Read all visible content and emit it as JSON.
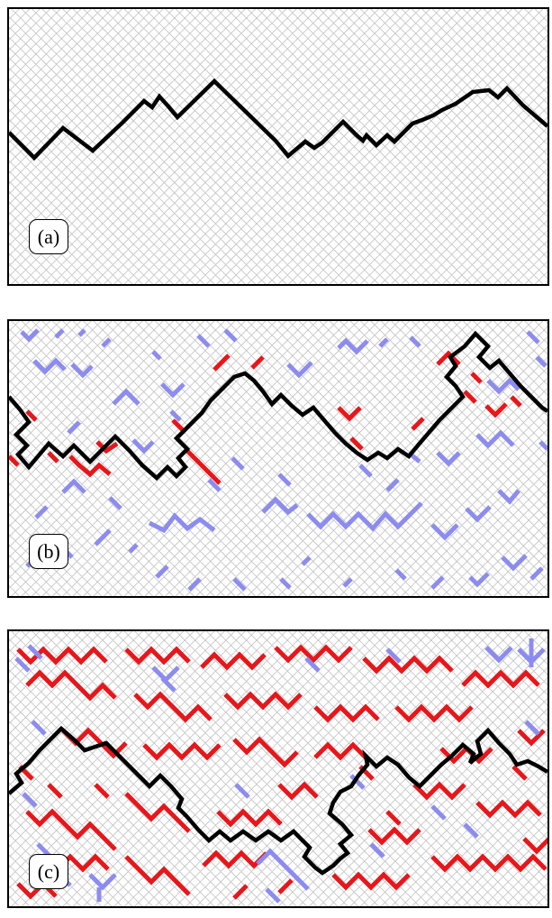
{
  "panels": [
    {
      "label": "(a)"
    },
    {
      "label": "(b)"
    },
    {
      "label": "(c)"
    }
  ],
  "colors": {
    "lattice": "#c0c0c0",
    "interface": "#000000",
    "red_cluster": "#e8161a",
    "blue_cluster": "#8c8cf0"
  }
}
